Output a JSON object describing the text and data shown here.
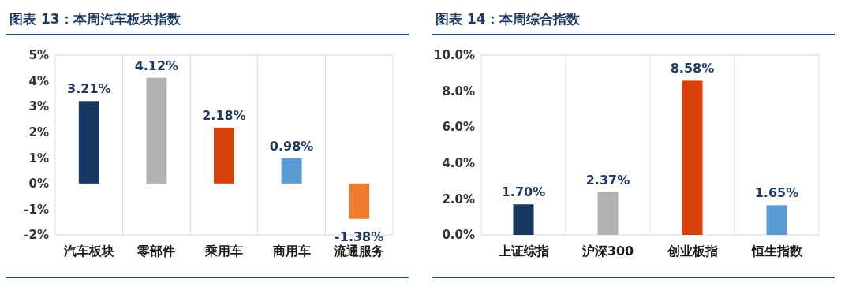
{
  "chart_data": [
    {
      "type": "bar",
      "title": "图表 13：本周汽车板块指数",
      "categories": [
        "汽车板块",
        "零部件",
        "乘用车",
        "商用车",
        "流通服务"
      ],
      "values": [
        3.21,
        4.12,
        2.18,
        0.98,
        -1.38
      ],
      "colors": [
        "#17375e",
        "#b2b2b2",
        "#d9410b",
        "#5b9bd5",
        "#ed7d31"
      ],
      "value_labels": [
        "3.21%",
        "4.12%",
        "2.18%",
        "0.98%",
        "-1.38%"
      ],
      "ylim": [
        -2,
        5
      ],
      "yticks": [
        {
          "value": -2,
          "label": "-2%"
        },
        {
          "value": -1,
          "label": "-1%"
        },
        {
          "value": 0,
          "label": "0%"
        },
        {
          "value": 1,
          "label": "1%"
        },
        {
          "value": 2,
          "label": "2%"
        },
        {
          "value": 3,
          "label": "3%"
        },
        {
          "value": 4,
          "label": "4%"
        },
        {
          "value": 5,
          "label": "5%"
        }
      ],
      "grid": "x"
    },
    {
      "type": "bar",
      "title": "图表 14：本周综合指数",
      "categories": [
        "上证综指",
        "沪深300",
        "创业板指",
        "恒生指数"
      ],
      "values": [
        1.7,
        2.37,
        8.58,
        1.65
      ],
      "colors": [
        "#17375e",
        "#b2b2b2",
        "#d9410b",
        "#5b9bd5"
      ],
      "value_labels": [
        "1.70%",
        "2.37%",
        "8.58%",
        "1.65%"
      ],
      "ylim": [
        0,
        10
      ],
      "yticks": [
        {
          "value": 0,
          "label": "0.0%"
        },
        {
          "value": 2,
          "label": "2.0%"
        },
        {
          "value": 4,
          "label": "4.0%"
        },
        {
          "value": 6,
          "label": "6.0%"
        },
        {
          "value": 8,
          "label": "8.0%"
        },
        {
          "value": 10,
          "label": "10.0%"
        }
      ],
      "grid": "x"
    }
  ]
}
